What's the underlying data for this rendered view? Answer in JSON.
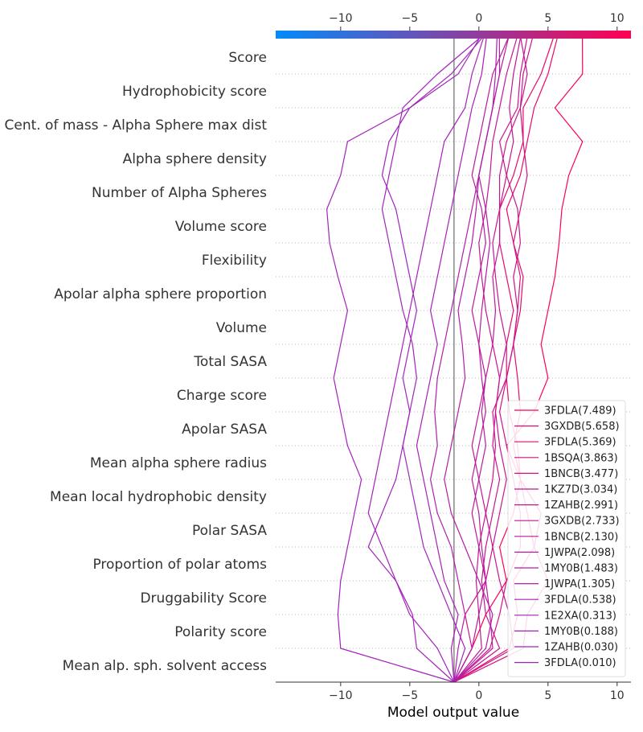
{
  "chart_data": {
    "type": "line",
    "title": "",
    "xlabel": "Model output value",
    "xlim": [
      -14.7,
      11
    ],
    "xticks": [
      -10,
      -5,
      0,
      5,
      10
    ],
    "base_value": -1.8,
    "colormap": [
      "#008bfb",
      "#ff0052"
    ],
    "features": [
      "Score",
      "Hydrophobicity score",
      "Cent. of mass - Alpha Sphere max dist",
      "Alpha sphere density",
      "Number of Alpha Spheres",
      "Volume score",
      "Flexibility",
      "Apolar alpha sphere proportion",
      "Volume",
      "Total SASA",
      "Charge score",
      "Apolar SASA",
      "Mean alpha sphere radius",
      "Mean local hydrophobic density",
      "Polar SASA",
      "Proportion of polar atoms",
      "Druggability Score",
      "Polarity score",
      "Mean alp. sph. solvent access"
    ],
    "series": [
      {
        "name": "3FDLA(7.489)",
        "final": 7.489,
        "values": [
          -1.8,
          -0.5,
          0.5,
          2.0,
          1.5,
          2.5,
          3.0,
          2.0,
          4.0,
          5.0,
          4.5,
          5.0,
          5.5,
          5.8,
          6.0,
          6.5,
          7.5,
          5.5,
          7.5,
          7.489
        ]
      },
      {
        "name": "3GXDB(5.658)",
        "final": 5.658,
        "values": [
          -1.8,
          2.2,
          2.8,
          2.5,
          4.0,
          3.5,
          3.0,
          2.5,
          3.0,
          2.8,
          2.5,
          3.0,
          3.2,
          2.5,
          2.0,
          3.0,
          3.5,
          4.0,
          5.0,
          5.658
        ]
      },
      {
        "name": "3FDLA(5.369)",
        "final": 5.369,
        "values": [
          -1.8,
          3.2,
          3.5,
          5.0,
          4.0,
          4.5,
          3.0,
          2.8,
          2.2,
          2.0,
          2.0,
          2.5,
          2.0,
          1.5,
          1.5,
          2.5,
          3.2,
          3.2,
          4.5,
          5.369
        ]
      },
      {
        "name": "1BSQA(3.863)",
        "final": 3.863,
        "values": [
          -1.8,
          0.8,
          1.5,
          2.0,
          3.0,
          3.0,
          2.5,
          2.0,
          1.5,
          2.0,
          2.5,
          2.8,
          3.0,
          2.5,
          3.0,
          3.5,
          3.2,
          3.0,
          3.2,
          3.863
        ]
      },
      {
        "name": "1BNCB(3.477)",
        "final": 3.477,
        "values": [
          -1.8,
          -0.5,
          -1.0,
          0.5,
          1.0,
          0.5,
          1.0,
          1.2,
          1.0,
          2.0,
          2.5,
          2.8,
          2.5,
          3.0,
          2.8,
          2.0,
          1.5,
          2.8,
          3.0,
          3.477
        ]
      },
      {
        "name": "1KZ7D(3.034)",
        "final": 3.034,
        "values": [
          -1.8,
          2.5,
          2.2,
          1.5,
          1.0,
          1.5,
          2.0,
          1.5,
          1.2,
          1.5,
          1.0,
          1.2,
          1.0,
          1.5,
          1.5,
          1.5,
          2.0,
          3.0,
          3.5,
          3.034
        ]
      },
      {
        "name": "1ZAHB(2.991)",
        "final": 2.991,
        "values": [
          -1.8,
          1.5,
          0.5,
          0.2,
          0.5,
          1.0,
          1.5,
          1.0,
          1.2,
          1.5,
          2.0,
          1.5,
          1.2,
          1.0,
          1.5,
          2.0,
          2.5,
          2.2,
          2.5,
          2.991
        ]
      },
      {
        "name": "3GXDB(2.733)",
        "final": 2.733,
        "values": [
          -1.8,
          0.2,
          0.0,
          -0.2,
          0.0,
          0.5,
          0.0,
          -0.5,
          0.0,
          0.5,
          1.0,
          0.5,
          0.2,
          0.0,
          0.5,
          0.8,
          1.0,
          1.5,
          2.0,
          2.733
        ]
      },
      {
        "name": "1BNCB(2.130)",
        "final": 2.13,
        "values": [
          -1.8,
          1.0,
          0.8,
          0.5,
          0.0,
          -0.5,
          0.0,
          0.5,
          0.2,
          0.5,
          0.0,
          0.2,
          0.5,
          0.8,
          0.5,
          0.0,
          0.5,
          1.0,
          1.5,
          2.13
        ]
      },
      {
        "name": "1JWPA(2.098)",
        "final": 2.098,
        "values": [
          -1.8,
          -0.5,
          0.0,
          0.5,
          0.2,
          0.0,
          -0.5,
          0.0,
          0.5,
          0.2,
          0.0,
          -0.5,
          0.0,
          0.5,
          0.2,
          -0.5,
          0.0,
          0.5,
          1.0,
          2.098
        ]
      },
      {
        "name": "1MY0B(1.483)",
        "final": 1.483,
        "values": [
          -1.8,
          0.5,
          1.0,
          0.0,
          -1.0,
          -2.0,
          -2.5,
          -2.0,
          -1.5,
          -1.0,
          -1.2,
          -1.5,
          -1.0,
          -0.5,
          -0.2,
          0.0,
          0.5,
          1.0,
          1.5,
          1.483
        ]
      },
      {
        "name": "1JWPA(1.305)",
        "final": 1.305,
        "values": [
          -1.8,
          -1.5,
          -1.0,
          -1.5,
          -2.0,
          -3.0,
          -3.5,
          -3.0,
          -3.2,
          -3.0,
          -2.5,
          -2.0,
          -1.5,
          -1.0,
          -0.5,
          0.0,
          0.5,
          1.0,
          1.2,
          1.305
        ]
      },
      {
        "name": "3FDLA(0.538)",
        "final": 0.538,
        "values": [
          -1.8,
          -2.0,
          -1.5,
          -2.5,
          -3.0,
          -3.5,
          -4.0,
          -4.5,
          -4.0,
          -3.5,
          -3.0,
          -3.5,
          -3.0,
          -2.5,
          -2.0,
          -1.5,
          -1.0,
          -0.5,
          0.2,
          0.538
        ]
      },
      {
        "name": "1E2XA(0.313)",
        "final": 0.313,
        "values": [
          -1.8,
          -4.5,
          -4.8,
          -6.0,
          -7.0,
          -8.0,
          -7.5,
          -7.0,
          -6.5,
          -6.0,
          -5.5,
          -5.0,
          -4.5,
          -4.0,
          -3.5,
          -3.0,
          -2.5,
          -1.0,
          -0.5,
          0.313
        ]
      },
      {
        "name": "1MY0B(0.188)",
        "final": 0.188,
        "values": [
          -1.8,
          -10.0,
          -10.2,
          -10.0,
          -9.5,
          -9.0,
          -8.5,
          -9.5,
          -10.0,
          -10.5,
          -10.0,
          -9.5,
          -10.2,
          -10.8,
          -11.0,
          -10.0,
          -9.5,
          -5.0,
          -2.0,
          0.188
        ]
      },
      {
        "name": "1ZAHB(0.030)",
        "final": 0.03,
        "values": [
          -1.8,
          -3.0,
          -5.0,
          -6.0,
          -8.0,
          -7.0,
          -6.0,
          -5.5,
          -5.0,
          -5.5,
          -5.0,
          -4.5,
          -5.0,
          -5.5,
          -6.0,
          -7.0,
          -6.5,
          -5.0,
          -1.5,
          0.03
        ]
      },
      {
        "name": "3FDLA(0.010)",
        "final": 0.01,
        "values": [
          -1.8,
          -1.0,
          -2.0,
          -3.0,
          -4.0,
          -4.5,
          -5.0,
          -5.5,
          -5.0,
          -4.5,
          -4.8,
          -5.5,
          -6.0,
          -6.5,
          -7.0,
          -6.5,
          -6.0,
          -5.5,
          -3.0,
          0.01
        ]
      }
    ]
  }
}
